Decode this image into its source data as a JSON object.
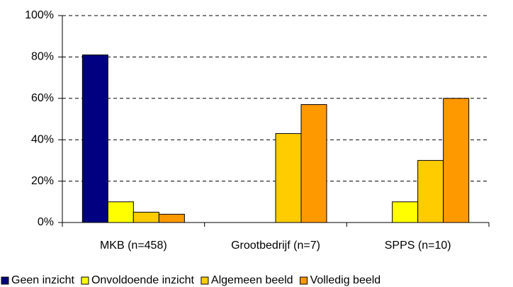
{
  "chart_data": {
    "type": "bar",
    "categories": [
      "MKB (n=458)",
      "Grootbedrijf (n=7)",
      "SPPS (n=10)"
    ],
    "series": [
      {
        "name": "Geen inzicht",
        "color": "#000080",
        "values": [
          81,
          0,
          0
        ]
      },
      {
        "name": "Onvoldoende inzicht",
        "color": "#ffff00",
        "values": [
          10,
          0,
          10
        ]
      },
      {
        "name": "Algemeen beeld",
        "color": "#ffcc00",
        "values": [
          5,
          43,
          30
        ]
      },
      {
        "name": "Volledig beeld",
        "color": "#ff9900",
        "values": [
          4,
          57,
          60
        ]
      }
    ],
    "ylim": [
      0,
      100
    ],
    "yticks": [
      {
        "value": 0,
        "label": "0%"
      },
      {
        "value": 20,
        "label": "20%"
      },
      {
        "value": 40,
        "label": "40%"
      },
      {
        "value": 60,
        "label": "60%"
      },
      {
        "value": 80,
        "label": "80%"
      },
      {
        "value": 100,
        "label": "100%"
      }
    ],
    "grid": true,
    "legend": "bottom"
  }
}
